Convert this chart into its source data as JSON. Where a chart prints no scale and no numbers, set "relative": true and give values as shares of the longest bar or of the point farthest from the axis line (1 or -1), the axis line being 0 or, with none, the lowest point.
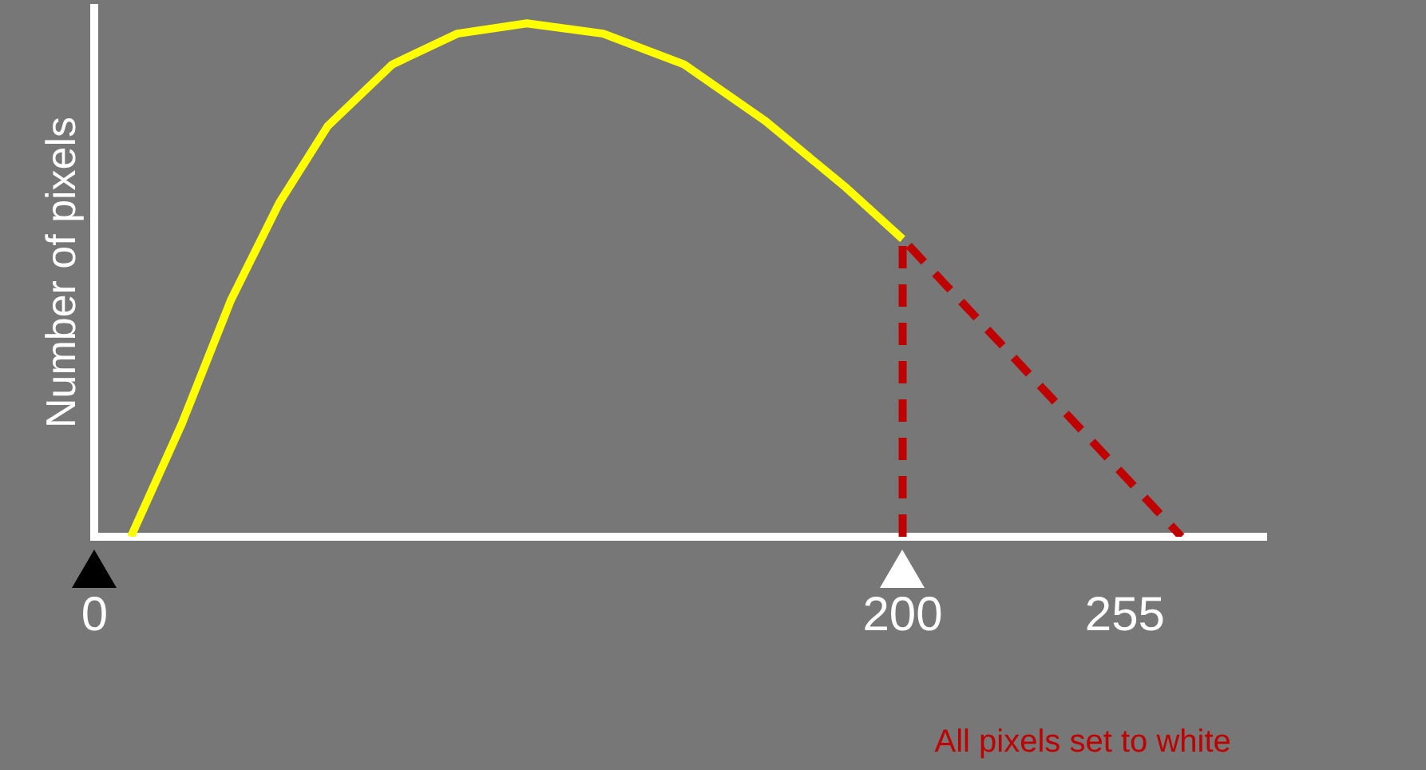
{
  "chart_data": {
    "type": "line",
    "relative": true,
    "ylabel": "Number of pixels",
    "xlim": [
      0,
      290
    ],
    "xticks": [
      0,
      200,
      255
    ],
    "grid": false,
    "legend": false,
    "marker": "none",
    "annotations": [
      "All pixels set to white"
    ],
    "series": [
      {
        "color": "#ffff00",
        "x": [
          9,
          21.6,
          33.7,
          45.7,
          57.7,
          73.7,
          89.8,
          107,
          125.9,
          145.9,
          166,
          186,
          200
        ],
        "values": [
          0,
          0.22,
          0.46,
          0.65,
          0.8,
          0.92,
          0.98,
          1,
          0.98,
          0.92,
          0.81,
          0.68,
          0.58
        ]
      },
      {
        "color": "#c00000",
        "line_style": "dashed",
        "x": [
          200,
          200,
          269
        ],
        "values": [
          0,
          0.58,
          0
        ]
      }
    ]
  }
}
